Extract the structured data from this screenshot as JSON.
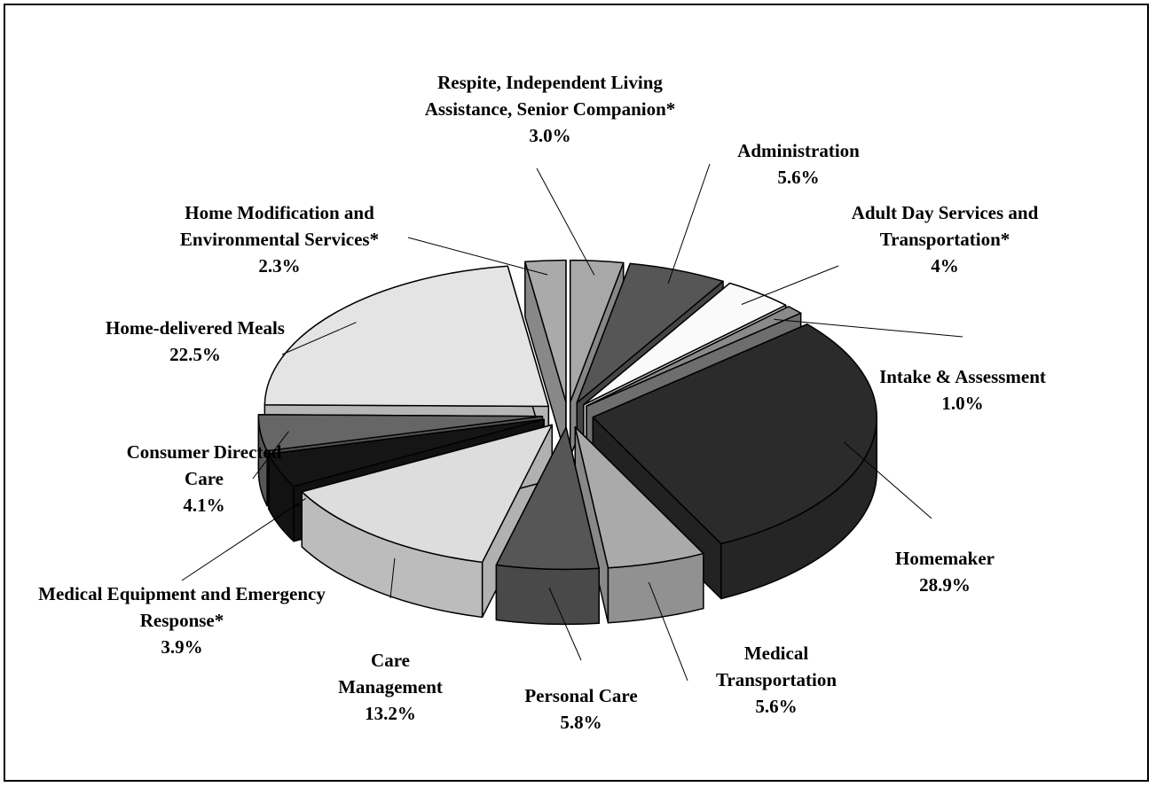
{
  "chart_data": {
    "type": "pie3d",
    "categories": [
      "Respite, Independent Living Assistance, Senior Companion*",
      "Administration",
      "Adult Day Services and Transportation*",
      "Intake & Assessment",
      "Homemaker",
      "Medical Transportation",
      "Personal Care",
      "Care Management",
      "Medical Equipment and Emergency Response*",
      "Consumer Directed Care",
      "Home-delivered Meals",
      "Home Modification and Environmental Services*"
    ],
    "values": [
      3.0,
      5.6,
      4,
      1.0,
      28.9,
      5.6,
      5.8,
      13.2,
      3.9,
      4.1,
      22.5,
      2.3
    ],
    "value_labels": [
      "3.0%",
      "5.6%",
      "4%",
      "1.0%",
      "28.9%",
      "5.6%",
      "5.8%",
      "13.2%",
      "3.9%",
      "4.1%",
      "22.5%",
      "2.3%"
    ],
    "colors": [
      "#a8a8a8",
      "#565656",
      "#fafafa",
      "#8a8a8a",
      "#2b2b2b",
      "#aaaaaa",
      "#565656",
      "#dddddd",
      "#151515",
      "#666666",
      "#e4e4e4",
      "#aaaaaa"
    ]
  }
}
